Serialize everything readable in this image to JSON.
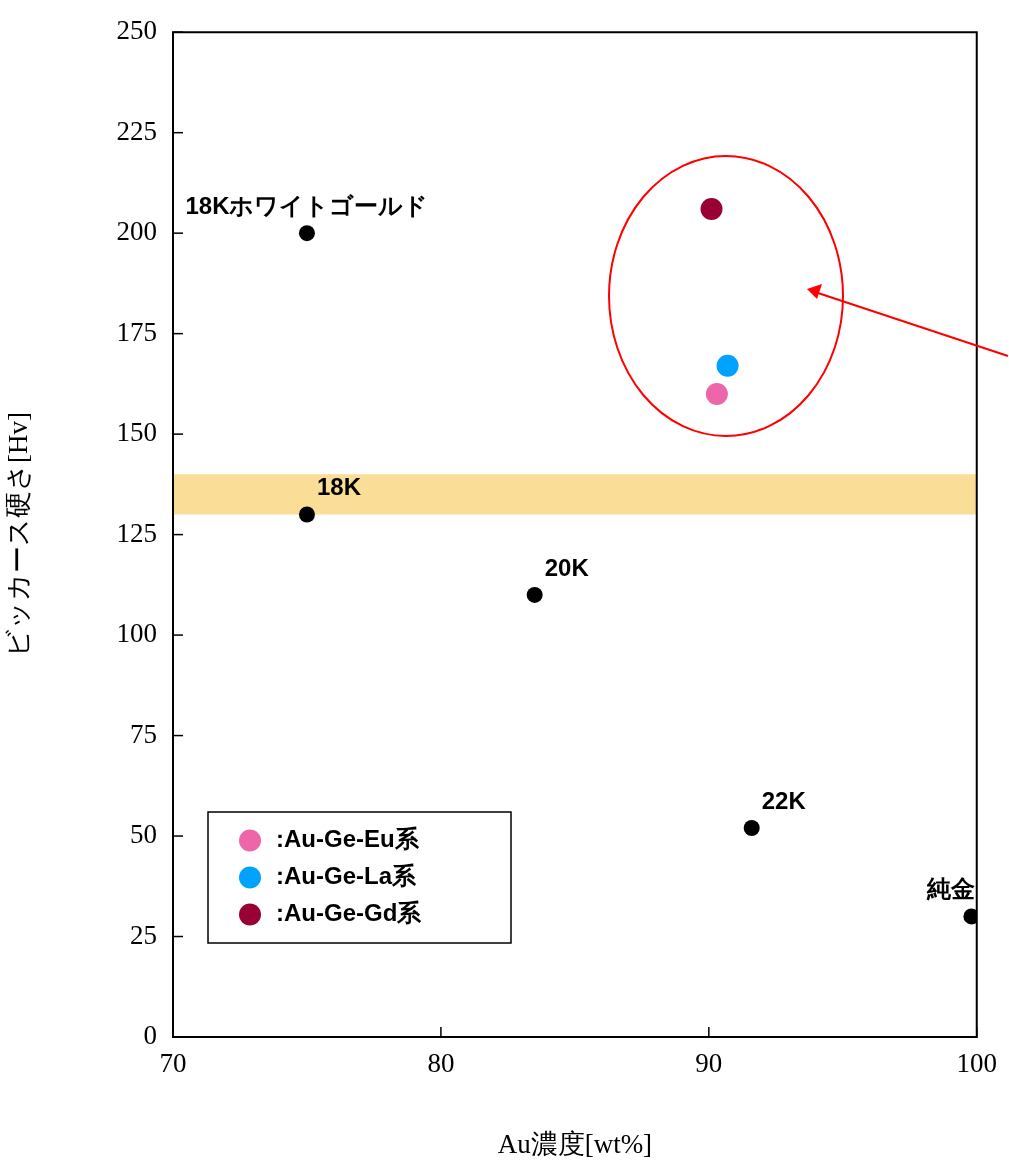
{
  "chart_data": {
    "type": "scatter",
    "xlabel": "Au濃度[wt%]",
    "ylabel": "ビッカース硬さ[Hv]",
    "xlim": [
      70,
      100
    ],
    "xticks": [
      70,
      80,
      90,
      100
    ],
    "ylim": [
      0,
      250
    ],
    "yticks": [
      0,
      25,
      50,
      75,
      100,
      125,
      150,
      175,
      200,
      225,
      250
    ],
    "grid": false,
    "legend": "bottom left",
    "marker": "circle",
    "series": [
      {
        "color": "#000000",
        "x": [
          75,
          75,
          83.5,
          91.6,
          99.8
        ],
        "values": [
          200,
          130,
          110,
          52,
          30
        ]
      },
      {
        "name": ":Au-Ge-Eu系",
        "color": "#ee66aa",
        "x": [
          90.3
        ],
        "values": [
          160
        ]
      },
      {
        "name": ":Au-Ge-La系",
        "color": "#00a2ff",
        "x": [
          90.7
        ],
        "values": [
          167
        ]
      },
      {
        "name": ":Au-Ge-Gd系",
        "color": "#990033",
        "x": [
          90.1
        ],
        "values": [
          206
        ]
      }
    ],
    "bands": [
      {
        "axis": "y",
        "from": 130,
        "to": 140,
        "color": "#f5c342"
      }
    ],
    "annotations": [
      {
        "text": "18Kホワイトゴールド",
        "x": 75,
        "y": 200
      },
      {
        "text": "18K",
        "x": 75,
        "y": 130
      },
      {
        "text": "20K",
        "x": 83.5,
        "y": 110
      },
      {
        "text": "22K",
        "x": 91.6,
        "y": 52
      },
      {
        "text": "純金",
        "x": 99.8,
        "y": 30
      }
    ]
  }
}
